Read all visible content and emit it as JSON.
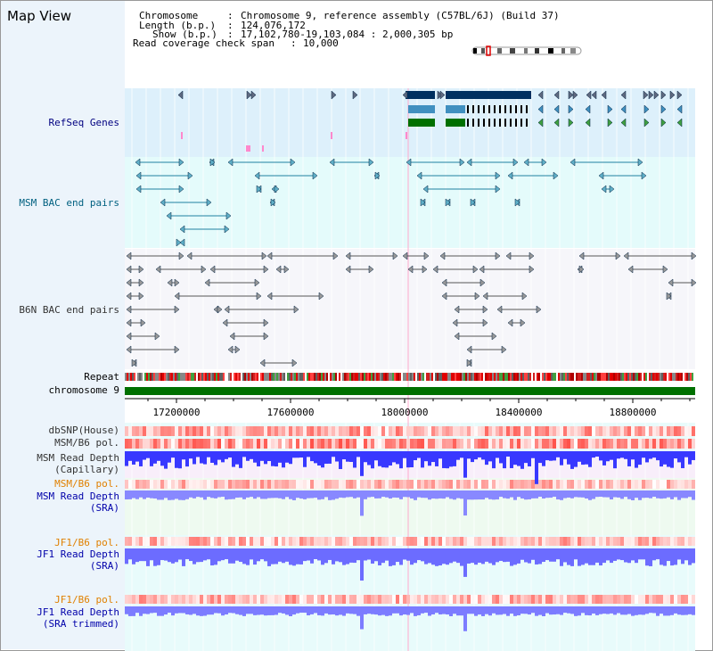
{
  "title": "Map View",
  "header": {
    "chromosome_key": "Chromosome",
    "chromosome_val": "Chromosome 9, reference assembly (C57BL/6J) (Build 37)",
    "length_key": "Length (b.p.)",
    "length_val": "124,076,172",
    "show_key": "Show (b.p.)",
    "show_val": "17,102,780-19,103,084 : 2,000,305 bp",
    "coverage_key": "Read coverage check span",
    "coverage_val": "10,000",
    "sep": ":"
  },
  "tracks": {
    "refseq": "RefSeq Genes",
    "msm_bac": "MSM BAC end pairs",
    "b6n_bac": "B6N BAC end pairs",
    "repeat": "Repeat",
    "chromosome": "chromosome 9",
    "dbsnp": "dbSNP(House)",
    "msm_b6_pol_1": "MSM/B6 pol.",
    "msm_depth_cap_1": "MSM Read Depth",
    "msm_depth_cap_2": "(Capillary)",
    "msm_b6_pol_2": "MSM/B6 pol.",
    "msm_depth_sra_1": "MSM Read Depth",
    "msm_depth_sra_2": "(SRA)",
    "jf1_b6_pol_1": "JF1/B6 pol.",
    "jf1_depth_sra_1": "JF1 Read Depth",
    "jf1_depth_sra_2": "(SRA)",
    "jf1_b6_pol_2": "JF1/B6 pol.",
    "jf1_depth_trim_1": "JF1 Read Depth",
    "jf1_depth_trim_2": "(SRA trimmed)"
  },
  "axis_ticks": [
    "17200000",
    "17600000",
    "18000000",
    "18400000",
    "18800000"
  ],
  "colors": {
    "navy_label": "#000080",
    "teal_label": "#006080",
    "gray_label": "#333333",
    "orange_label": "#e08000",
    "blue_label": "#0000aa",
    "chromosome_green": "#007000",
    "depth_blue": "#3838ff"
  }
}
